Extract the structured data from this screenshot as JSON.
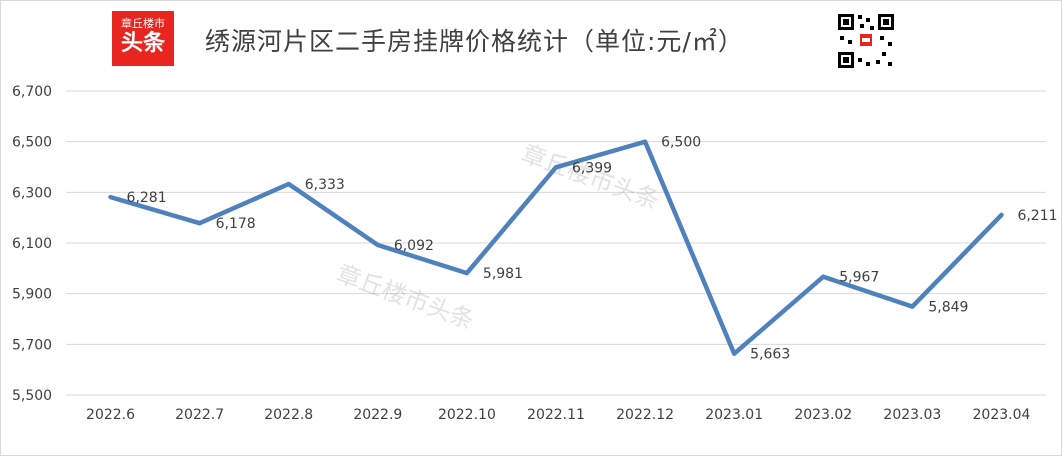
{
  "header": {
    "logo_line1": "章丘楼市",
    "logo_line2": "头条",
    "title": "绣源河片区二手房挂牌价格统计（单位:元/㎡）",
    "watermark": "章丘楼市头条"
  },
  "colors": {
    "line": "#4f81bd",
    "logo_bg": "#e8251f",
    "grid": "#d9d9d9",
    "text": "#404040"
  },
  "chart_data": {
    "type": "line",
    "title": "绣源河片区二手房挂牌价格统计（单位:元/㎡）",
    "categories": [
      "2022.6",
      "2022.7",
      "2022.8",
      "2022.9",
      "2022.10",
      "2022.11",
      "2022.12",
      "2023.01",
      "2023.02",
      "2023.03",
      "2023.04"
    ],
    "series": [
      {
        "values": [
          6281,
          6178,
          6333,
          6092,
          5981,
          6399,
          6500,
          5663,
          5967,
          5849,
          6211
        ]
      }
    ],
    "value_labels": [
      "6,281",
      "6,178",
      "6,333",
      "6,092",
      "5,981",
      "6,399",
      "6,500",
      "5,663",
      "5,967",
      "5,849",
      "6,211"
    ],
    "yticks": [
      "5,500",
      "5,700",
      "5,900",
      "6,100",
      "6,300",
      "6,500",
      "6,700"
    ],
    "ylim": [
      5500,
      6700
    ],
    "grid": true,
    "legend": "none"
  }
}
